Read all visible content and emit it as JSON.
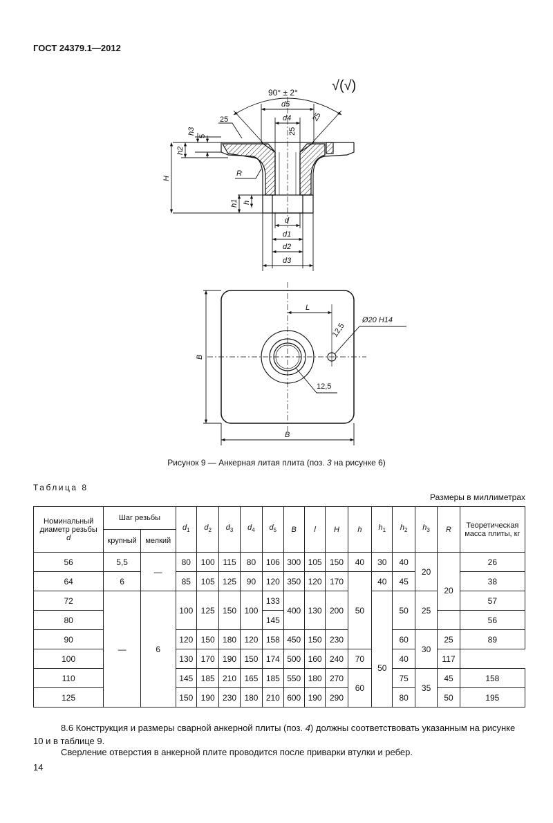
{
  "header": {
    "standard": "ГОСТ 24379.1—2012"
  },
  "figure": {
    "labels": {
      "angle": "90° ± 2°",
      "roughness": "√(√)",
      "d5": "d5",
      "d4": "d4",
      "d": "d",
      "d1": "d1",
      "d2": "d2",
      "d3": "d3",
      "r25a": "25",
      "r25b": "25",
      "r25c": "25",
      "h3": "h3",
      "five": "5",
      "h2": "h2",
      "H": "H",
      "R": "R",
      "h1": "h1",
      "h": "h",
      "L": "L",
      "hole": "Ø20 H14",
      "r125a": "12,5",
      "r125b": "12,5",
      "B_vert": "B",
      "B_horiz": "B"
    },
    "caption_prefix": "Рисунок 9 — Анкерная литая плита (поз.",
    "caption_pos": "3",
    "caption_suffix": "на рисунке 6)"
  },
  "table": {
    "title": "Таблица 8",
    "units": "Размеры в миллиметрах",
    "headers": {
      "nominal": "Номинальный диаметр резьбы",
      "nominal_d": "d",
      "pitch": "Шаг резьбы",
      "coarse": "крупный",
      "fine": "мелкий",
      "mass": "Теоретическая масса плиты, кг"
    },
    "cells": {
      "d_56": "56",
      "d_64": "64",
      "d_72": "72",
      "d_80": "80",
      "d_90": "90",
      "d_100": "100",
      "d_110": "110",
      "d_125": "125",
      "coarse_56": "5,5",
      "coarse_64": "6",
      "coarse_rest": "—",
      "fine_top": "—",
      "fine_rest": "6",
      "d1_56": "80",
      "d2_56": "100",
      "d3_56": "115",
      "d4_56": "80",
      "d5_56": "106",
      "B_56": "300",
      "l_56": "105",
      "H_56": "150",
      "h_56": "40",
      "h1_56": "30",
      "h2_56": "40",
      "d1_64": "85",
      "d2_64": "105",
      "d3_64": "125",
      "d4_64": "90",
      "d5_64": "120",
      "B_64": "350",
      "l_64": "120",
      "H_64": "170",
      "h1_64": "40",
      "h2_64": "45",
      "d1_7280": "100",
      "d2_7280": "125",
      "d3_7280": "150",
      "d4_7280": "100",
      "d5_72": "133",
      "d5_80": "145",
      "B_7280": "400",
      "l_7280": "130",
      "H_7280": "200",
      "h_72to90": "50",
      "h2_7280": "50",
      "d1_90": "120",
      "d2_90": "150",
      "d3_90": "180",
      "d4_90": "120",
      "d5_90": "158",
      "B_90": "450",
      "l_90": "150",
      "H_90": "230",
      "h1_90to125": "50",
      "h2_90": "60",
      "d1_100": "130",
      "d2_100": "170",
      "d3_100": "190",
      "d4_100": "150",
      "d5_100": "174",
      "B_100": "500",
      "l_100": "160",
      "H_100": "240",
      "h2_100": "70",
      "d1_110": "145",
      "d2_110": "185",
      "d3_110": "210",
      "d4_110": "165",
      "d5_110": "185",
      "B_110": "550",
      "l_110": "180",
      "H_110": "270",
      "h_110125": "60",
      "h2_110": "75",
      "d1_125": "150",
      "d2_125": "190",
      "d3_125": "230",
      "d4_125": "180",
      "d5_125": "210",
      "B_125": "600",
      "l_125": "190",
      "H_125": "290",
      "h2_125": "80",
      "h3_5664": "20",
      "h3_7280": "25",
      "h3_90100": "30",
      "h3_110125": "35",
      "R_5664": "20",
      "R_7280": "20",
      "R_90": "25",
      "R_100": "40",
      "R_110": "45",
      "R_125": "50",
      "m_56": "26",
      "m_64": "38",
      "m_72": "57",
      "m_80": "56",
      "m_90": "89",
      "m_100": "117",
      "m_110": "158",
      "m_125": "195"
    }
  },
  "text": {
    "para1_a": "8.6 Конструкция и размеры сварной анкерной плиты (поз.",
    "para1_pos": "4",
    "para1_b": ") должны соответствовать указанным на рисунке 10 и в таблице 9.",
    "para2": "Сверление отверстия в анкерной плите проводится после приварки втулки и ребер."
  },
  "footer": {
    "page_number": "14"
  }
}
